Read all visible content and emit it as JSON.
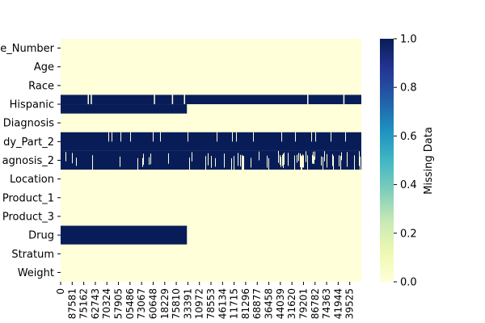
{
  "chart_data": {
    "type": "heatmap",
    "title": "",
    "xlabel": "",
    "ylabel": "",
    "rows": [
      "e_Number",
      "Age",
      "Race",
      "Hispanic",
      "Diagnosis",
      "dy_Part_2",
      "agnosis_2",
      "Location",
      "Product_1",
      "Product_3",
      "Drug",
      "Stratum",
      "Weight"
    ],
    "x_tick_labels": [
      "0",
      "87581",
      "75162",
      "62743",
      "70324",
      "57905",
      "05486",
      "73067",
      "60648",
      "18229",
      "75810",
      "33391",
      "10972",
      "78553",
      "46134",
      "11715",
      "81296",
      "68877",
      "36458",
      "44039",
      "31620",
      "79201",
      "86782",
      "74363",
      "41944",
      "39525"
    ],
    "colorbar": {
      "label": "Missing Data",
      "range": [
        0.0,
        1.0
      ],
      "ticks": [
        "0.0",
        "0.2",
        "0.4",
        "0.6",
        "0.8",
        "1.0"
      ],
      "colors": [
        "#ffffd9",
        "#edf8b1",
        "#c7e9b4",
        "#7fcdbb",
        "#41b6c4",
        "#1d91c0",
        "#225ea8",
        "#253494",
        "#081d58"
      ]
    },
    "missing_fraction_by_column": {
      "e_Number": 0.0,
      "Age": 0.0,
      "Race": 0.0,
      "Hispanic": 0.98,
      "Diagnosis": 0.0,
      "dy_Part_2": 0.95,
      "agnosis_2": 0.88,
      "Location": 0.0,
      "Product_1": 0.0,
      "Product_3": 0.0,
      "Drug": 0.42,
      "Stratum": 0.0,
      "Weight": 0.0
    },
    "colors": {
      "present": "#ffffd9",
      "missing": "#081d58"
    }
  }
}
